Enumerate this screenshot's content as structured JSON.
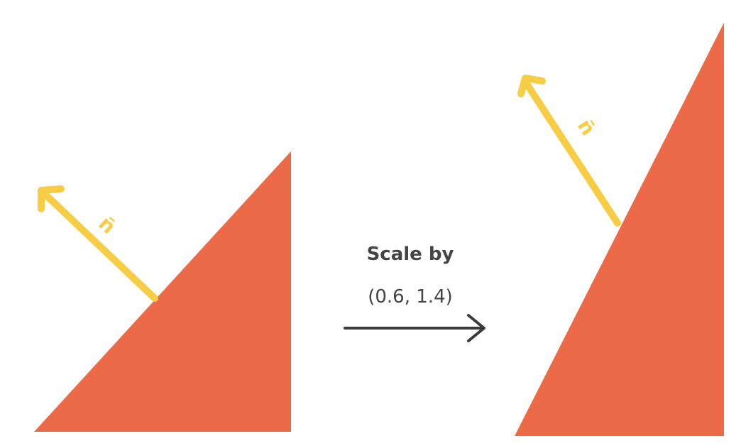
{
  "caption": {
    "title": "Scale by",
    "value": "(0.6, 1.4)"
  },
  "left_figure": {
    "normal_label": "n̄"
  },
  "right_figure": {
    "normal_label": "n̄"
  },
  "colors": {
    "triangle": "#EC6A47",
    "normal_arrow": "#F7CD45",
    "transform_arrow": "#3A3A3A",
    "text": "#444444"
  },
  "icons": {
    "transform_arrow": "right-arrow-icon",
    "normal_arrow": "normal-vector-arrow-icon"
  }
}
